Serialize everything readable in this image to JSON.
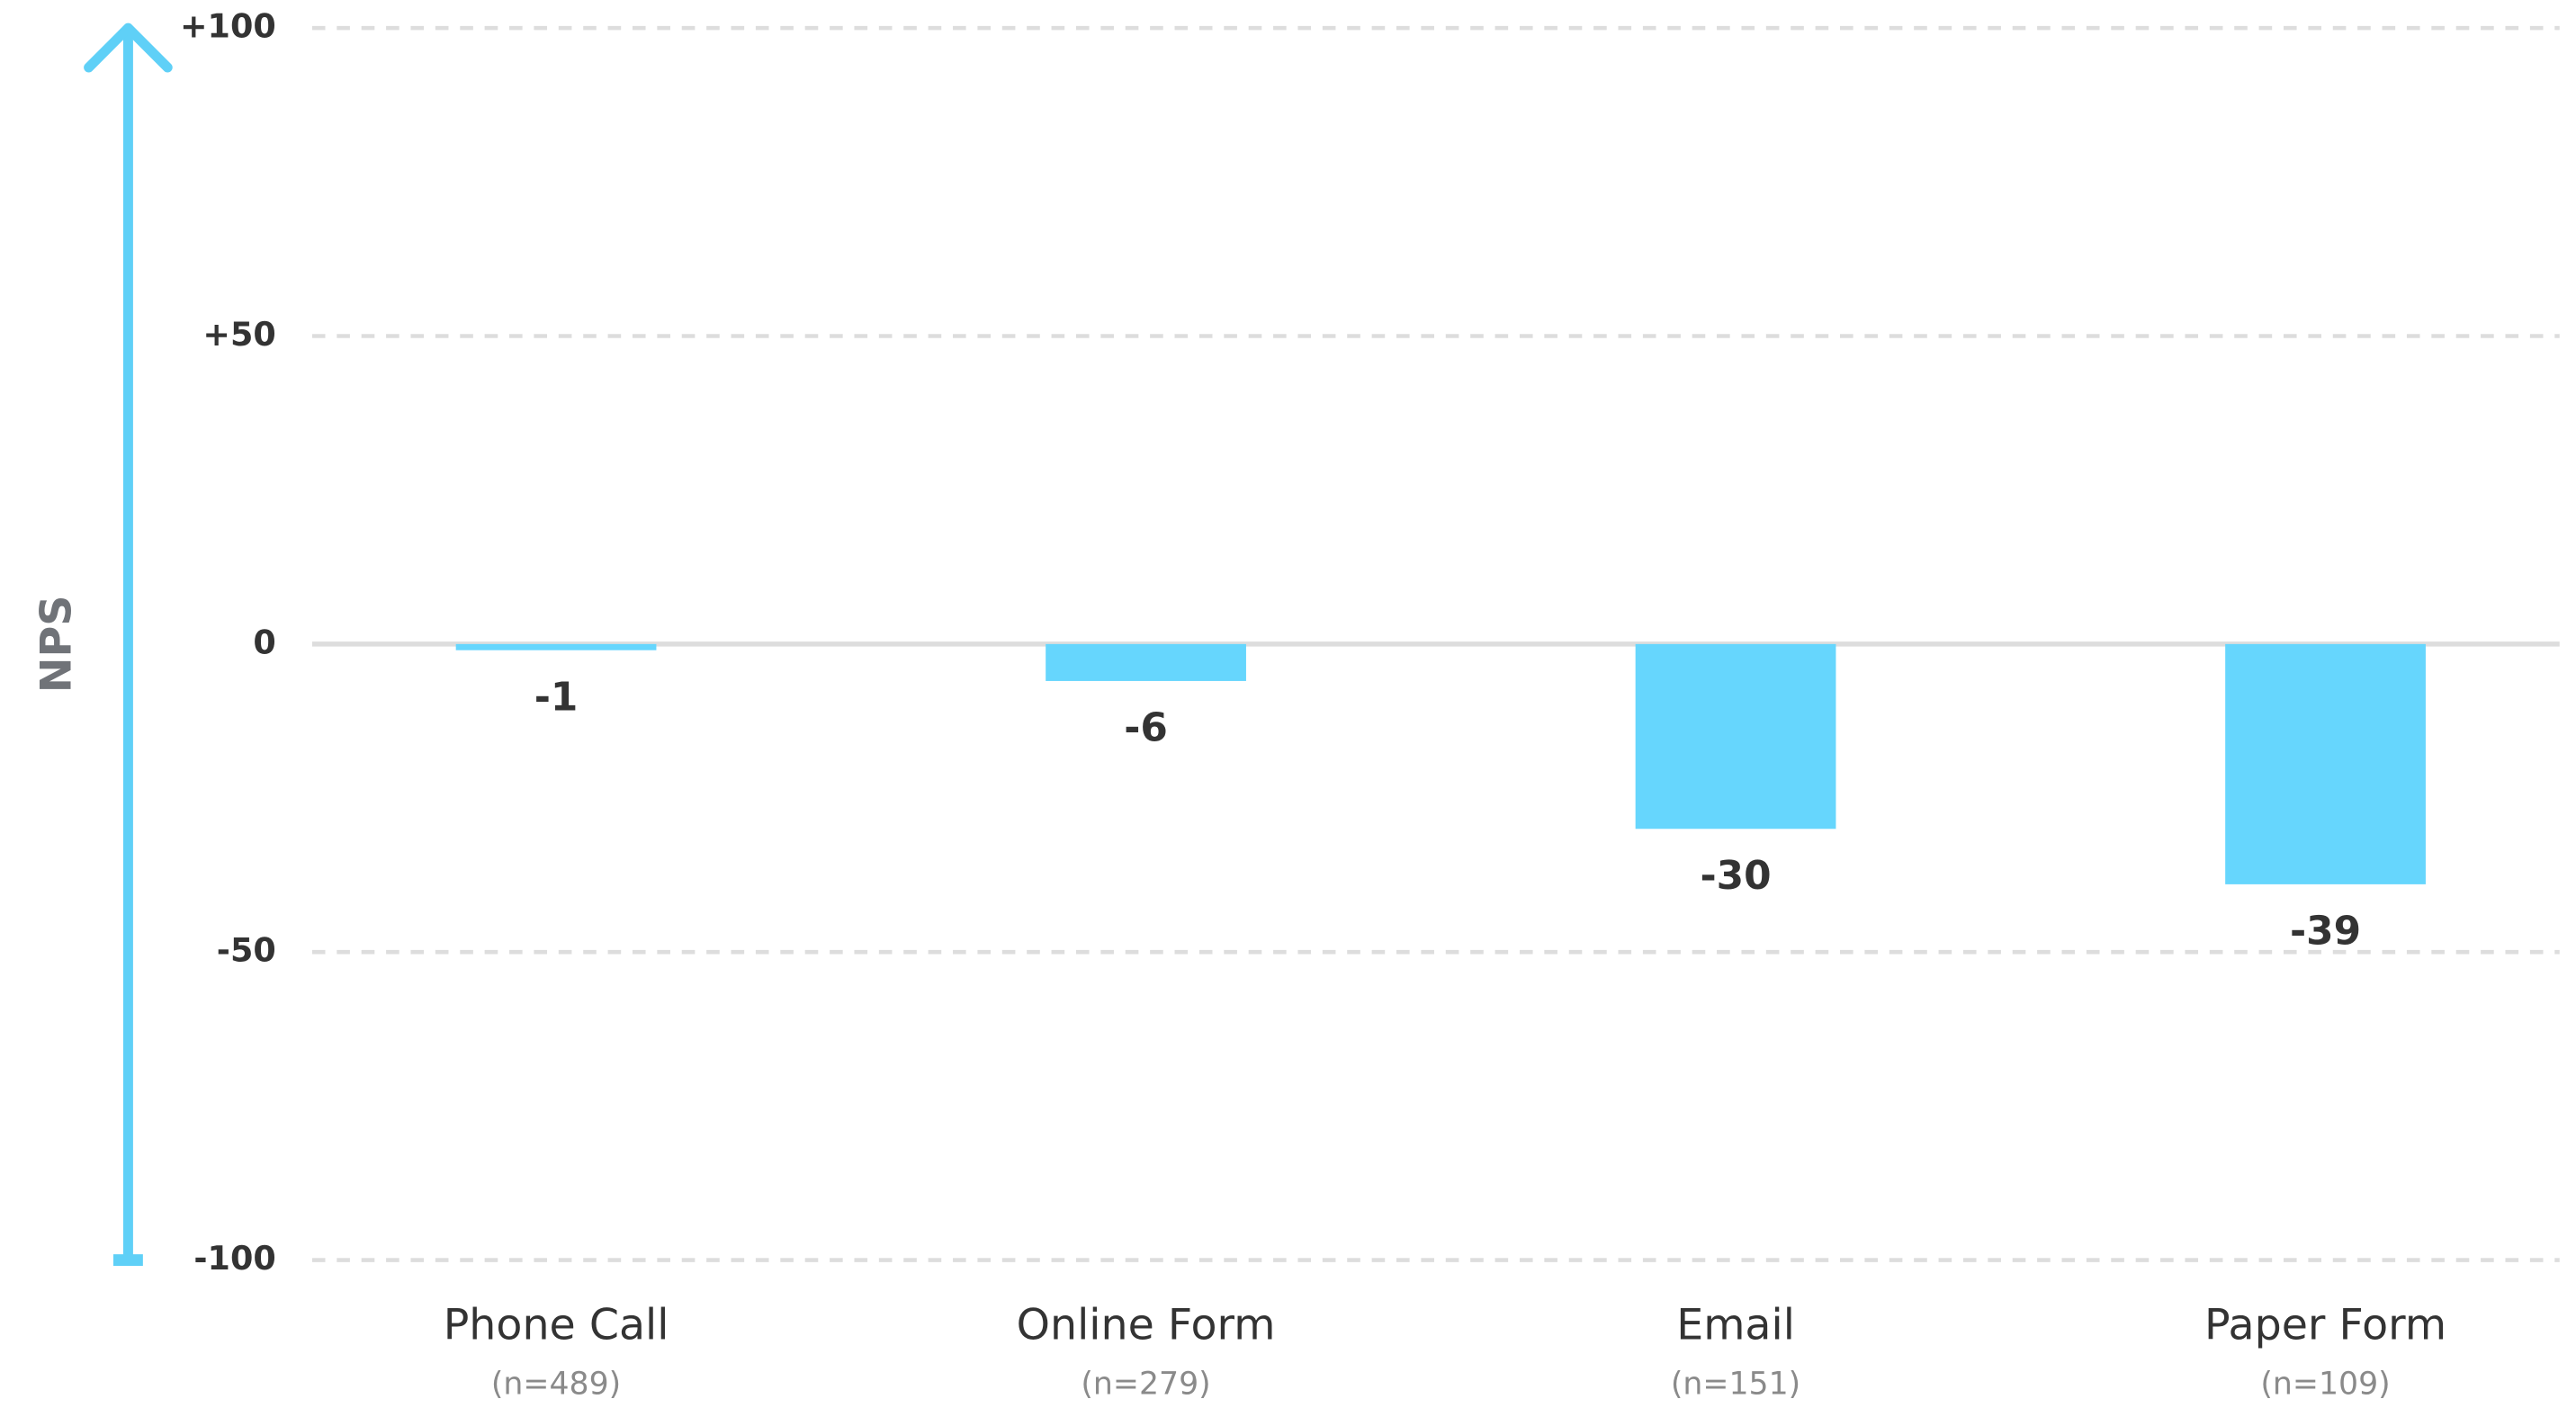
{
  "chart_data": {
    "type": "bar",
    "ylabel": "NPS",
    "categories": [
      "Phone Call",
      "Online Form",
      "Email",
      "Paper Form"
    ],
    "sublabels": [
      "(n=489)",
      "(n=279)",
      "(n=151)",
      "(n=109)"
    ],
    "values": [
      -1,
      -6,
      -30,
      -39
    ],
    "color": "#66d6fd",
    "axis_color": "#5fd0f7",
    "ylim": [
      -100,
      100
    ],
    "yticks": [
      {
        "value": 100,
        "label": "+100"
      },
      {
        "value": 50,
        "label": "+50"
      },
      0,
      -50,
      -100
    ],
    "grid": true
  }
}
